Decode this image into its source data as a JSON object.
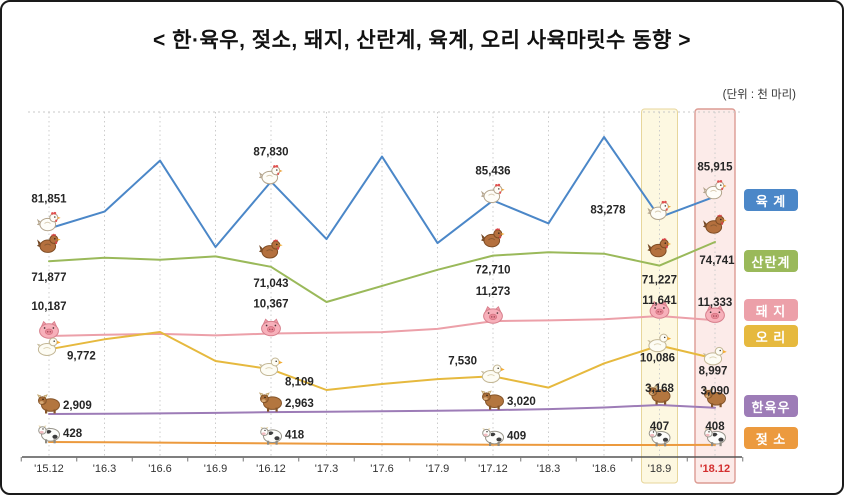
{
  "chart_data": {
    "type": "line",
    "title": "< 한·육우, 젖소, 돼지, 산란계, 육계, 오리 사육마릿수 동향 >",
    "unit_note": "(단위 : 천 마리)",
    "legend_position": "right",
    "grid": "vertical-dotted",
    "categories": [
      "'15.12",
      "'16.3",
      "'16.6",
      "'16.9",
      "'16.12",
      "'17.3",
      "'17.6",
      "'17.9",
      "'17.12",
      "'18.3",
      "'18.6",
      "'18.9",
      "'18.12"
    ],
    "labeled_indices": [
      0,
      4,
      8,
      11,
      12
    ],
    "highlights": [
      {
        "category": "'18.9",
        "fill": "#fdf8e1",
        "border": "#e7d69b"
      },
      {
        "category": "'18.12",
        "fill": "#fcebe9",
        "border": "#dc9b93"
      }
    ],
    "series": [
      {
        "key": "broiler",
        "name": "육 계",
        "icon": "hen-icon",
        "color": "#4b87c8",
        "values": [
          81851,
          84000,
          90500,
          79500,
          87830,
          80500,
          91000,
          80000,
          85436,
          82500,
          93500,
          83278,
          85915
        ]
      },
      {
        "key": "layer",
        "name": "산란계",
        "icon": "rooster-icon",
        "color": "#9ab95a",
        "values": [
          71877,
          72400,
          72100,
          72600,
          71043,
          65800,
          68200,
          70600,
          72710,
          73200,
          73000,
          71227,
          74741
        ]
      },
      {
        "key": "pig",
        "name": "돼 지",
        "icon": "pig-icon",
        "color": "#eca0a9",
        "values": [
          10187,
          10280,
          10340,
          10230,
          10367,
          10420,
          10470,
          10700,
          11273,
          11320,
          11400,
          11641,
          11333
        ]
      },
      {
        "key": "duck",
        "name": "오 리",
        "icon": "duck-icon",
        "color": "#e6b93e",
        "values": [
          9772,
          10600,
          11200,
          8800,
          8109,
          6400,
          6900,
          7300,
          7530,
          6600,
          8600,
          10086,
          8997
        ]
      },
      {
        "key": "hanwoo",
        "name": "한육우",
        "icon": "ox-icon",
        "color": "#9d7cb7",
        "values": [
          2909,
          2915,
          2925,
          2940,
          2963,
          2975,
          2990,
          3005,
          3020,
          3050,
          3095,
          3168,
          3090
        ]
      },
      {
        "key": "dairy",
        "name": "젖 소",
        "icon": "dairy-cow-icon",
        "color": "#ec9a3e",
        "values": [
          428,
          426,
          424,
          421,
          418,
          416,
          413,
          411,
          409,
          408,
          407,
          407,
          408
        ]
      }
    ]
  }
}
